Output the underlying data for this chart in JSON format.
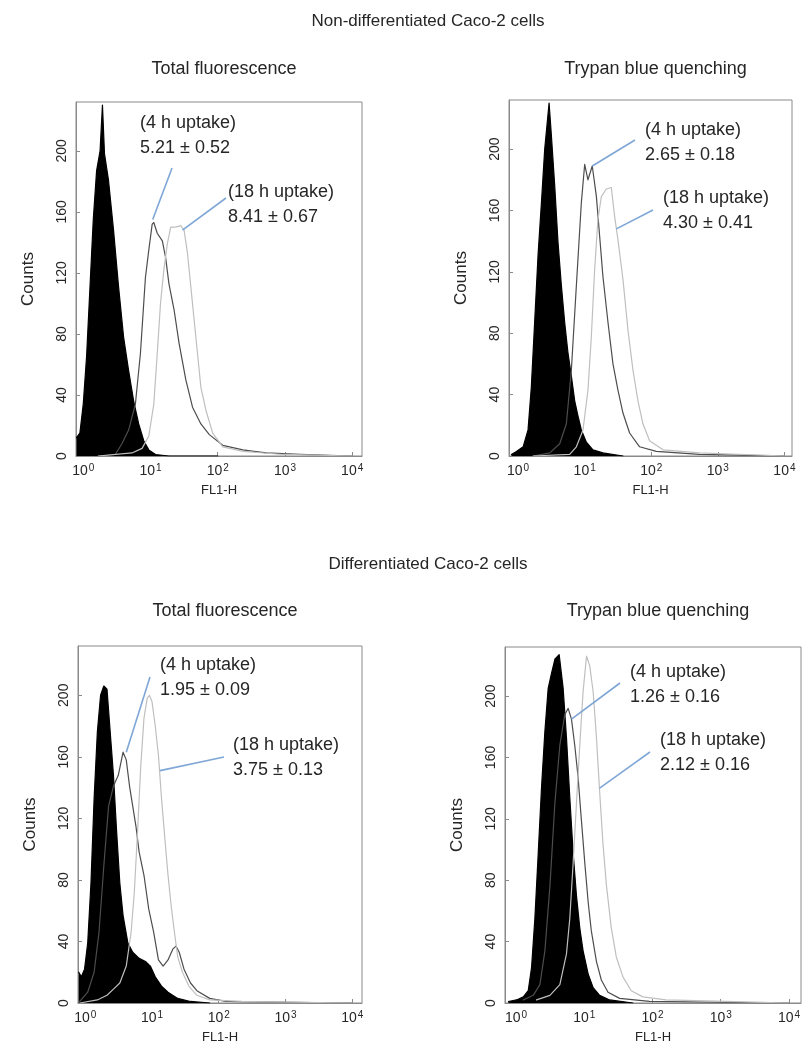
{
  "chart_data": [
    {
      "type": "line",
      "title": "Total fluorescence",
      "xlabel": "FL1-H",
      "ylabel": "Counts",
      "log": "x",
      "marker": "none",
      "xlim": [
        0.78,
        14000
      ],
      "ylim": [
        0,
        232
      ],
      "xticks": [
        {
          "value": 1,
          "label": "10$^{0}$"
        },
        {
          "value": 10,
          "label": "10$^{1}$"
        },
        {
          "value": 100,
          "label": "10$^{2}$"
        },
        {
          "value": 1000,
          "label": "10$^{3}$"
        },
        {
          "value": 10000,
          "label": "10$^{4}$"
        }
      ],
      "yticks": [
        0,
        40,
        80,
        120,
        160,
        200
      ],
      "series": [
        {
          "type": "area",
          "color": "#000000",
          "x": [
            0.794,
            0.891,
            1.0,
            1.12,
            1.26,
            1.41,
            1.58,
            1.78,
            1.93,
            2.07,
            2.37,
            2.82,
            3.35,
            3.98,
            4.73,
            5.62,
            6.68,
            7.94,
            9.44,
            11.9,
            18.8,
            100
          ],
          "values": [
            12,
            15,
            34,
            65,
            111,
            155,
            187,
            200,
            230,
            198,
            181,
            148,
            111,
            78,
            56,
            36,
            21,
            10,
            4,
            1,
            0,
            0
          ]
        },
        {
          "color": "#4d4d4d",
          "x": [
            1.68,
            2.99,
            3.76,
            4.73,
            5.96,
            7.08,
            8.41,
            9.44,
            10.6,
            11.2,
            12.6,
            15.0,
            16.8,
            18.8,
            22.4,
            26.6,
            33.5,
            42.2,
            56.2,
            75.0,
            119,
            237,
            531,
            1680,
            10000
          ],
          "values": [
            0,
            1,
            8,
            17,
            34,
            67,
            117,
            135,
            152,
            153,
            146,
            141,
            130,
            113,
            96,
            74,
            50,
            32,
            21,
            14,
            7,
            4,
            2,
            1,
            0
          ]
        },
        {
          "color": "#bfbfbf",
          "x": [
            1.68,
            5.31,
            7.5,
            9.44,
            11.2,
            12.6,
            14.1,
            15.8,
            17.8,
            20.0,
            23.7,
            28.2,
            31.6,
            35.5,
            39.8,
            47.3,
            56.2,
            66.8,
            84.1,
            119,
            237,
            944,
            10000
          ],
          "values": [
            0,
            2,
            5,
            13,
            34,
            67,
            100,
            122,
            139,
            150,
            150,
            151,
            148,
            133,
            111,
            78,
            45,
            30,
            15,
            6,
            3,
            1,
            0
          ]
        }
      ],
      "annotations": [
        "Non-differentiated Caco-2 cells",
        {
          "text": "(4 h uptake)\n5.21 ± 0.52",
          "x": 10.8,
          "y": 155
        },
        {
          "text": "(18 h uptake)\n8.41 ± 0.67",
          "x": 29.9,
          "y": 148
        }
      ]
    },
    {
      "type": "line",
      "title": "Trypan blue quenching",
      "xlabel": "FL1-H",
      "ylabel": "Counts",
      "log": "x",
      "marker": "none",
      "xlim": [
        0.73,
        13000
      ],
      "ylim": [
        0,
        232
      ],
      "xticks": [
        {
          "value": 1,
          "label": "10$^{0}$"
        },
        {
          "value": 10,
          "label": "10$^{1}$"
        },
        {
          "value": 100,
          "label": "10$^{2}$"
        },
        {
          "value": 1000,
          "label": "10$^{3}$"
        },
        {
          "value": 10000,
          "label": "10$^{4}$"
        }
      ],
      "yticks": [
        0,
        40,
        80,
        120,
        160,
        200
      ],
      "series": [
        {
          "type": "area",
          "color": "#000000",
          "x": [
            0.794,
            0.944,
            1.19,
            1.41,
            1.58,
            1.78,
            2.0,
            2.24,
            2.51,
            2.92,
            3.16,
            3.55,
            3.98,
            4.47,
            5.01,
            5.62,
            6.31,
            7.08,
            7.94,
            8.91,
            10.6,
            13.3,
            18.8,
            37.6
          ],
          "values": [
            1,
            3,
            6,
            17,
            45,
            89,
            132,
            165,
            200,
            230,
            209,
            176,
            139,
            111,
            87,
            67,
            52,
            36,
            26,
            17,
            9,
            4,
            2,
            0
          ]
        },
        {
          "color": "#4d4d4d",
          "x": [
            1.68,
            2.99,
            4.22,
            5.31,
            6.31,
            7.5,
            8.91,
            10.0,
            11.2,
            13.0,
            15.0,
            16.8,
            18.8,
            22.4,
            26.6,
            31.6,
            37.6,
            47.3,
            66.8,
            119,
            531,
            10000
          ],
          "values": [
            0,
            2,
            8,
            21,
            56,
            111,
            165,
            190,
            180,
            189,
            169,
            143,
            117,
            87,
            60,
            43,
            28,
            15,
            6,
            3,
            1,
            0
          ]
        },
        {
          "color": "#bfbfbf",
          "x": [
            1.68,
            5.96,
            7.5,
            9.44,
            11.2,
            12.6,
            14.1,
            15.8,
            17.8,
            21.1,
            25.1,
            28.2,
            31.6,
            37.6,
            44.7,
            53.1,
            63.1,
            75.0,
            94.4,
            150,
            531,
            10000
          ],
          "values": [
            0,
            1,
            6,
            17,
            43,
            78,
            121,
            154,
            169,
            174,
            175,
            156,
            141,
            115,
            82,
            56,
            36,
            21,
            10,
            4,
            2,
            0
          ]
        }
      ],
      "annotations": [
        {
          "text": "(4 h uptake)\n2.65 ± 0.18",
          "x": 13.0,
          "y": 189
        },
        {
          "text": "(18 h uptake)\n4.30 ± 0.41",
          "x": 29.9,
          "y": 148
        }
      ]
    },
    {
      "type": "line",
      "title": "Total fluorescence",
      "xlabel": "FL1-H",
      "ylabel": "Counts",
      "log": "x",
      "marker": "none",
      "xlim": [
        0.78,
        14000
      ],
      "ylim": [
        0,
        232
      ],
      "xticks": [
        {
          "value": 1,
          "label": "10$^{0}$"
        },
        {
          "value": 10,
          "label": "10$^{1}$"
        },
        {
          "value": 100,
          "label": "10$^{2}$"
        },
        {
          "value": 1000,
          "label": "10$^{3}$"
        },
        {
          "value": 10000,
          "label": "10$^{4}$"
        }
      ],
      "yticks": [
        0,
        40,
        80,
        120,
        160,
        200
      ],
      "series": [
        {
          "type": "area",
          "color": "#000000",
          "x": [
            0.801,
            0.875,
            0.978,
            1.09,
            1.22,
            1.36,
            1.52,
            1.7,
            1.9,
            2.12,
            2.37,
            2.65,
            2.96,
            3.3,
            3.69,
            4.36,
            5.15,
            6.43,
            8.01,
            9.46,
            11.2,
            13.9,
            17.4,
            24.3,
            37.8,
            73.3
          ],
          "values": [
            20,
            17,
            22,
            39,
            78,
            133,
            176,
            200,
            206,
            204,
            176,
            148,
            111,
            78,
            57,
            39,
            33,
            29,
            27,
            24,
            17,
            11,
            7,
            3,
            1,
            0
          ]
        },
        {
          "color": "#4d4d4d",
          "x": [
            0.829,
            1.09,
            1.36,
            1.61,
            1.9,
            2.24,
            2.65,
            3.13,
            3.69,
            4.12,
            4.61,
            5.15,
            5.75,
            6.43,
            7.59,
            8.95,
            10.6,
            12.5,
            14.7,
            17.4,
            20.5,
            22.9,
            25.6,
            30.2,
            37.8,
            47.1,
            73.3,
            128,
            10000
          ],
          "values": [
            1,
            7,
            20,
            46,
            89,
            128,
            141,
            148,
            163,
            158,
            141,
            128,
            115,
            98,
            83,
            61,
            46,
            28,
            24,
            28,
            35,
            37,
            33,
            22,
            13,
            8,
            3,
            1,
            0
          ]
        },
        {
          "color": "#bfbfbf",
          "x": [
            0.829,
            1.52,
            2.12,
            2.65,
            3.3,
            4.12,
            4.87,
            5.44,
            6.08,
            6.79,
            7.59,
            8.47,
            9.16,
            10.0,
            11.2,
            12.5,
            13.9,
            15.6,
            17.4,
            19.4,
            21.7,
            24.3,
            28.6,
            35.7,
            47.1,
            73.3,
            222,
            10000
          ],
          "values": [
            0,
            2,
            5,
            9,
            13,
            24,
            46,
            72,
            111,
            154,
            185,
            198,
            200,
            196,
            180,
            161,
            133,
            107,
            83,
            63,
            46,
            30,
            20,
            11,
            5,
            2,
            1,
            0
          ]
        }
      ],
      "annotations": [
        "Differentiated Caco-2 cells",
        {
          "text": "(4 h uptake)\n1.95 ± 0.09",
          "x": 4.12,
          "y": 163
        },
        {
          "text": "(18 h uptake)\n3.75 ± 0.13",
          "x": 13.2,
          "y": 151
        }
      ]
    },
    {
      "type": "line",
      "title": "Trypan blue quenching",
      "xlabel": "FL1-H",
      "ylabel": "Counts",
      "log": "x",
      "marker": "none",
      "xlim": [
        0.69,
        15000
      ],
      "ylim": [
        0,
        232
      ],
      "xticks": [
        {
          "value": 1,
          "label": "10$^{0}$"
        },
        {
          "value": 10,
          "label": "10$^{1}$"
        },
        {
          "value": 100,
          "label": "10$^{2}$"
        },
        {
          "value": 1000,
          "label": "10$^{3}$"
        },
        {
          "value": 10000,
          "label": "10$^{4}$"
        }
      ],
      "yticks": [
        0,
        40,
        80,
        120,
        160,
        200
      ],
      "series": [
        {
          "type": "area",
          "color": "#000000",
          "x": [
            0.773,
            1.02,
            1.28,
            1.51,
            1.69,
            1.89,
            2.12,
            2.37,
            2.65,
            2.96,
            3.32,
            3.71,
            4.29,
            4.91,
            5.49,
            6.14,
            6.87,
            7.69,
            8.6,
            9.62,
            11.4,
            13.5,
            16.8,
            23.6,
            51.6
          ],
          "values": [
            1,
            2,
            4,
            8,
            23,
            55,
            98,
            141,
            177,
            205,
            215,
            224,
            227,
            205,
            173,
            134,
            98,
            70,
            49,
            34,
            19,
            10,
            5,
            2,
            0
          ]
        },
        {
          "color": "#4d4d4d",
          "x": [
            1.28,
            1.79,
            2.24,
            2.65,
            3.14,
            3.71,
            4.39,
            5.19,
            5.81,
            6.5,
            7.26,
            8.13,
            9.09,
            10.2,
            11.4,
            12.7,
            15.1,
            17.8,
            22.3,
            33.0,
            90.4,
            10000
          ],
          "values": [
            2,
            5,
            12,
            34,
            76,
            130,
            168,
            188,
            192,
            185,
            168,
            147,
            119,
            91,
            66,
            47,
            27,
            15,
            7,
            3,
            1,
            0
          ]
        },
        {
          "color": "#bfbfbf",
          "x": [
            2.0,
            3.14,
            4.39,
            5.49,
            6.14,
            6.87,
            7.69,
            8.6,
            9.62,
            10.8,
            12.0,
            13.5,
            15.1,
            16.8,
            18.8,
            21.1,
            24.9,
            29.5,
            36.9,
            48.8,
            72.3,
            158,
            10000
          ],
          "values": [
            2,
            5,
            12,
            32,
            55,
            91,
            130,
            168,
            203,
            226,
            220,
            203,
            173,
            138,
            104,
            77,
            49,
            30,
            17,
            8,
            4,
            2,
            0
          ]
        }
      ],
      "annotations": [
        {
          "text": "(4 h uptake)\n1.26 ± 0.16",
          "x": 6.5,
          "y": 185
        },
        {
          "text": "(18 h uptake)\n2.12 ± 0.16",
          "x": 16.8,
          "y": 140
        }
      ]
    }
  ]
}
